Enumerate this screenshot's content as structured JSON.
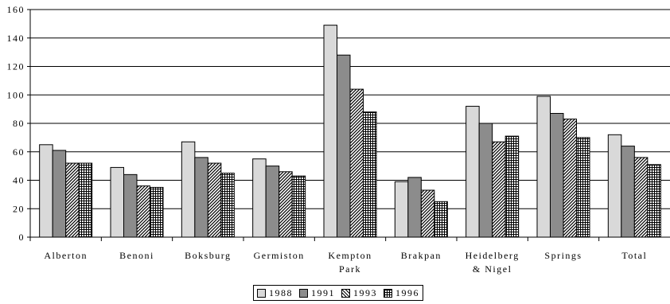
{
  "chart_data": {
    "type": "bar",
    "title": "",
    "xlabel": "",
    "ylabel": "",
    "ylim": [
      0,
      160
    ],
    "yticks": [
      0,
      20,
      40,
      60,
      80,
      100,
      120,
      140,
      160
    ],
    "grid": true,
    "legend_position": "bottom",
    "categories": [
      [
        "Alberton"
      ],
      [
        "Benoni"
      ],
      [
        "Boksburg"
      ],
      [
        "Germiston"
      ],
      [
        "Kempton",
        "Park"
      ],
      [
        "Brakpan"
      ],
      [
        "Heidelberg",
        "& Nigel"
      ],
      [
        "Springs"
      ],
      [
        "Total"
      ]
    ],
    "series": [
      {
        "name": "1988",
        "values": [
          65,
          49,
          67,
          55,
          149,
          39,
          92,
          99,
          72
        ],
        "pattern": "light-gray"
      },
      {
        "name": "1991",
        "values": [
          61,
          44,
          56,
          50,
          128,
          42,
          80,
          87,
          64
        ],
        "pattern": "dark-gray"
      },
      {
        "name": "1993",
        "values": [
          52,
          36,
          52,
          46,
          104,
          33,
          67,
          83,
          56
        ],
        "pattern": "diagonal-hatch"
      },
      {
        "name": "1996",
        "values": [
          52,
          35,
          45,
          43,
          88,
          25,
          71,
          70,
          51
        ],
        "pattern": "cross-hatch"
      }
    ]
  }
}
